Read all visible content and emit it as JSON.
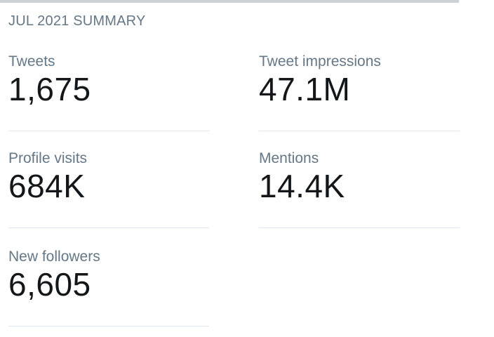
{
  "summary": {
    "title": "JUL 2021 SUMMARY"
  },
  "stats": {
    "tweets": {
      "label": "Tweets",
      "value": "1,675"
    },
    "tweet_impressions": {
      "label": "Tweet impressions",
      "value": "47.1M"
    },
    "profile_visits": {
      "label": "Profile visits",
      "value": "684K"
    },
    "mentions": {
      "label": "Mentions",
      "value": "14.4K"
    },
    "new_followers": {
      "label": "New followers",
      "value": "6,605"
    }
  },
  "colors": {
    "label": "#657786",
    "value": "#14171a",
    "divider": "#e1e8ed",
    "top_rule": "#ccd1d6"
  }
}
